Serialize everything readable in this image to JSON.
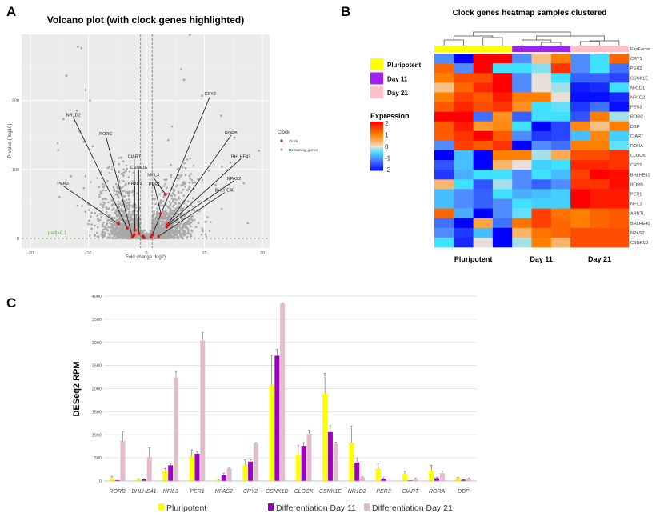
{
  "panels": {
    "a": "A",
    "b": "B",
    "c": "C"
  },
  "chart_data": [
    {
      "type": "scatter",
      "title": "Volcano plot (with clock genes highlighted)",
      "xlabel": "Fold change (log2)",
      "ylabel": "P-value (-log10)",
      "xlim": [
        -21.5,
        21.5
      ],
      "ylim": [
        -15,
        290
      ],
      "xticks": [
        -20,
        -10,
        0,
        10,
        20
      ],
      "yticks": [
        0,
        100,
        200
      ],
      "grid": true,
      "threshold_lines": {
        "x": [
          -1,
          1
        ],
        "y": 0,
        "y_label": "padj=0.1"
      },
      "legend": {
        "title": "Clock",
        "entries": [
          "Clock",
          "Remaining_genes"
        ],
        "placement": "right"
      },
      "colors": {
        "clock": "#e0161b",
        "remaining": "#a9a9a9",
        "panel": "#ebebeb",
        "threshold": "#6aa84f"
      },
      "clock_genes": [
        {
          "gene": "PER3",
          "x": -4.8,
          "y": 21,
          "label_x": -14.4,
          "label_y": 80
        },
        {
          "gene": "NR1D2",
          "x": -3.3,
          "y": 15,
          "label_x": -12.6,
          "label_y": 179
        },
        {
          "gene": "RORC",
          "x": -2.4,
          "y": 2,
          "label_x": -7.0,
          "label_y": 152
        },
        {
          "gene": "CIART",
          "x": -2.0,
          "y": 12,
          "label_x": -2.1,
          "label_y": 119
        },
        {
          "gene": "CSNK1E",
          "x": -1.3,
          "y": 7,
          "label_x": -1.3,
          "label_y": 103
        },
        {
          "gene": "NR1D1",
          "x": -2.1,
          "y": 5,
          "label_x": -2.0,
          "label_y": 80
        },
        {
          "gene": "NFIL3",
          "x": 3.3,
          "y": 64,
          "label_x": 1.2,
          "label_y": 92
        },
        {
          "gene": "PER1",
          "x": 2.5,
          "y": 36,
          "label_x": 1.4,
          "label_y": 79
        },
        {
          "gene": "CRY2",
          "x": 1.0,
          "y": 5,
          "label_x": 11.0,
          "label_y": 210
        },
        {
          "gene": "RORB",
          "x": 3.8,
          "y": 22,
          "label_x": 14.6,
          "label_y": 153
        },
        {
          "gene": "BHLHE41",
          "x": 3.6,
          "y": 19,
          "label_x": 16.3,
          "label_y": 119
        },
        {
          "gene": "NPAS2",
          "x": 3.5,
          "y": 17,
          "label_x": 15.1,
          "label_y": 87
        },
        {
          "gene": "BHLHE40",
          "x": 2.1,
          "y": 3,
          "label_x": 13.5,
          "label_y": 70
        }
      ],
      "unlabeled_clock_points": [
        [
          -0.6,
          3
        ],
        [
          -0.4,
          1
        ],
        [
          0.8,
          2
        ]
      ],
      "outlier_points": [
        [
          -11.8,
          278
        ],
        [
          -11.2,
          276
        ],
        [
          -13.8,
          236
        ],
        [
          -10.5,
          215
        ],
        [
          6.0,
          245
        ],
        [
          6.5,
          230
        ],
        [
          7.5,
          295
        ],
        [
          9.6,
          207
        ],
        [
          -12,
          185
        ],
        [
          -14.3,
          173
        ],
        [
          -15.3,
          138
        ],
        [
          -15.2,
          128
        ],
        [
          19.4,
          127
        ],
        [
          17.5,
          22
        ],
        [
          15.2,
          146
        ],
        [
          12.9,
          178
        ],
        [
          -11.5,
          155
        ],
        [
          -10.8,
          140
        ],
        [
          16.8,
          80
        ],
        [
          14.5,
          110
        ],
        [
          -13,
          90
        ],
        [
          -15,
          60
        ]
      ]
    },
    {
      "type": "heatmap",
      "title": "Clock genes heatmap samples clustered",
      "annotation_label": "ExpFactor",
      "groups": [
        {
          "name": "Pluripotent",
          "n": 4,
          "color": "#ffff00"
        },
        {
          "name": "Day 11",
          "n": 3,
          "color": "#a020f0"
        },
        {
          "name": "Day 21",
          "n": 3,
          "color": "#ffc0cb"
        }
      ],
      "legend_title": "Expression",
      "scale": [
        2,
        1,
        0,
        -1,
        -2
      ],
      "rows": [
        "CRY1",
        "PER2",
        "CSNK1E",
        "NR1D1",
        "NR1D2",
        "PER3",
        "RORC",
        "DBP",
        "CIART",
        "RORA",
        "CLOCK",
        "CRY2",
        "BHLHE41",
        "RORB",
        "PER1",
        "NFIL3",
        "ARNTL",
        "BHLHE40",
        "NPAS2",
        "CSNK1D"
      ],
      "values": [
        [
          -1,
          -2,
          2,
          2,
          -1,
          0.3,
          1,
          -1,
          -0.5,
          1.2
        ],
        [
          1.2,
          -1,
          2,
          -0.5,
          -0.5,
          -0.3,
          1.6,
          -1,
          -0.5,
          -1.2
        ],
        [
          1,
          1.4,
          1.4,
          2,
          -1,
          0,
          -0.5,
          -1.3,
          -1.3,
          -1.5
        ],
        [
          0.3,
          1.2,
          1.7,
          2,
          -1,
          0,
          -0.2,
          -1.8,
          -1.7,
          -0.5
        ],
        [
          1,
          1.5,
          1.3,
          1.8,
          1,
          1,
          0,
          -1.9,
          -1.9,
          -1.7
        ],
        [
          1.3,
          1.7,
          1.4,
          1.6,
          0.8,
          -0.5,
          -0.4,
          -1.6,
          -1.2,
          -1.9
        ],
        [
          2,
          2,
          -1.2,
          0.8,
          -1.3,
          -0.5,
          -0.5,
          -1.4,
          1,
          -0.2
        ],
        [
          1.3,
          1.8,
          0.7,
          0.9,
          -0.5,
          -2,
          -1.5,
          0.9,
          0.3,
          1
        ],
        [
          1.3,
          1.6,
          2,
          1.3,
          -1,
          -1.6,
          -1.5,
          -0.7,
          0.9,
          -0.6
        ],
        [
          -1,
          1.5,
          1.3,
          1.6,
          -2,
          -1,
          -1.2,
          1,
          1,
          -0.4
        ],
        [
          -2,
          -0.7,
          -2,
          1,
          1,
          -0.2,
          0.5,
          1.4,
          1.4,
          1.6
        ],
        [
          -1.4,
          -0.7,
          -2,
          0.4,
          0,
          -0.6,
          -0.5,
          1.7,
          1.7,
          1.6
        ],
        [
          -1.6,
          -0.8,
          -0.5,
          -0.5,
          -1,
          -0.5,
          -0.7,
          1.5,
          2,
          1.9
        ],
        [
          0.4,
          -0.5,
          -1.4,
          -0.2,
          -1,
          -1.3,
          -1,
          1.6,
          1.6,
          1.9
        ],
        [
          -0.7,
          -1,
          -1.3,
          -0.5,
          -0.8,
          -0.7,
          -0.6,
          2,
          1.8,
          1.8
        ],
        [
          -0.7,
          -1,
          -1.3,
          -1,
          -0.5,
          -0.6,
          -0.6,
          2,
          1.8,
          1.8
        ],
        [
          1.2,
          -0.8,
          -2,
          -1,
          -0.4,
          1.5,
          1.1,
          1,
          1.2,
          1.3
        ],
        [
          -1.2,
          -2,
          0.6,
          -1.2,
          1.1,
          1.5,
          1.2,
          1,
          1.2,
          1.3
        ],
        [
          -1,
          -1.6,
          -0.7,
          -2,
          0.4,
          1.1,
          1.2,
          1.4,
          1.4,
          1.4
        ],
        [
          -0.5,
          -1.7,
          0,
          -2,
          -0.2,
          1,
          0.4,
          1.4,
          1.4,
          1.4
        ]
      ]
    },
    {
      "type": "bar",
      "ylabel": "DESeq2 RPM",
      "ylim": [
        0,
        4000
      ],
      "yticks": [
        0,
        500,
        1000,
        1500,
        2000,
        2500,
        3000,
        3500,
        4000
      ],
      "grid": true,
      "legend_placement": "bottom",
      "categories": [
        "RORB",
        "BHLHE41",
        "NFIL3",
        "PER1",
        "NPAS2",
        "CRY2",
        "CSNK1D",
        "CLOCK",
        "CSNK1E",
        "NR1D2",
        "PER3",
        "CIART",
        "RORA",
        "DBP"
      ],
      "series": [
        {
          "name": "Pluripotent",
          "color": "#ffff00",
          "values": [
            70,
            40,
            220,
            530,
            20,
            350,
            2080,
            580,
            1890,
            830,
            270,
            150,
            230,
            70
          ],
          "errors": [
            30,
            10,
            50,
            140,
            10,
            110,
            640,
            190,
            440,
            360,
            100,
            60,
            110,
            10
          ]
        },
        {
          "name": "Differentiation Day 11",
          "color": "#9b00c4",
          "values": [
            20,
            35,
            340,
            590,
            130,
            420,
            2710,
            760,
            1060,
            400,
            50,
            15,
            60,
            25
          ],
          "errors": [
            0,
            10,
            30,
            40,
            40,
            40,
            140,
            70,
            140,
            100,
            20,
            0,
            20,
            5
          ]
        },
        {
          "name": "Differentiation Day 21",
          "color": "#e3bccb",
          "values": [
            870,
            520,
            2240,
            3040,
            270,
            810,
            3840,
            1020,
            810,
            80,
            5,
            40,
            170,
            50
          ],
          "errors": [
            200,
            200,
            130,
            170,
            10,
            20,
            10,
            80,
            30,
            10,
            0,
            20,
            50,
            10
          ]
        }
      ]
    }
  ]
}
